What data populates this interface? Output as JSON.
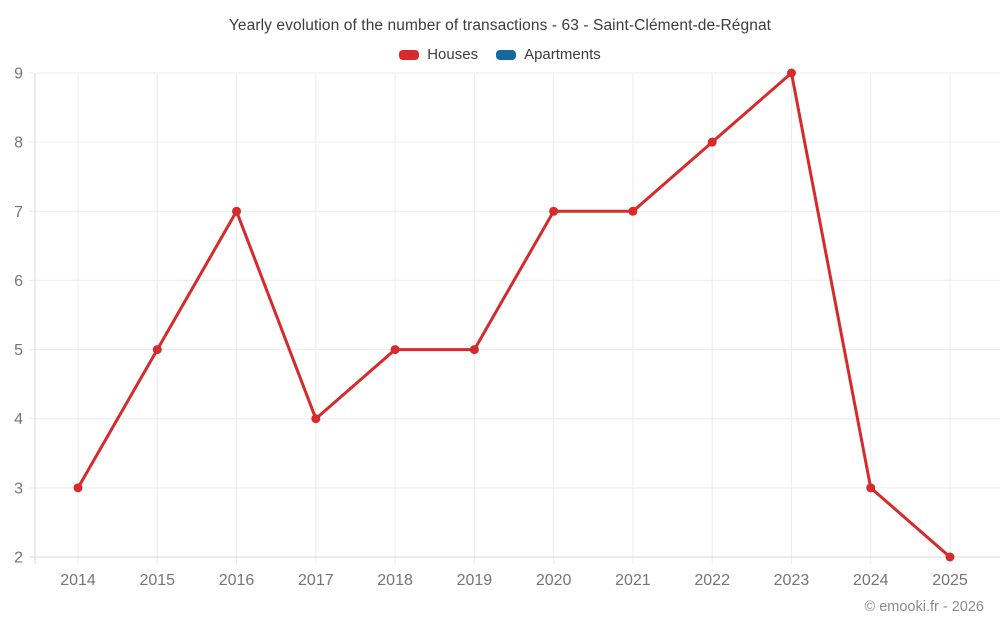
{
  "page": {
    "copyright": "© emooki.fr - 2026"
  },
  "theme": {
    "background": "#ffffff",
    "gridline_color": "#ececec",
    "axis_color": "#d8d8d8",
    "tick_label_color": "#757575",
    "title_color": "#3c3c3c",
    "copyright_color": "#8b8b8b"
  },
  "chart_data": {
    "type": "line",
    "title": "Yearly evolution of the number of transactions - 63 - Saint-Clément-de-Régnat",
    "categories": [
      "2014",
      "2015",
      "2016",
      "2017",
      "2018",
      "2019",
      "2020",
      "2021",
      "2022",
      "2023",
      "2024",
      "2025"
    ],
    "series": [
      {
        "name": "Houses",
        "color": "#d62a2b",
        "values": [
          3,
          5,
          7,
          4,
          5,
          5,
          7,
          7,
          8,
          9,
          3,
          2
        ]
      },
      {
        "name": "Apartments",
        "color": "#16699f",
        "values": []
      }
    ],
    "xlabel": "",
    "ylabel": "",
    "ylim": [
      2,
      9
    ],
    "yticks": [
      2,
      3,
      4,
      5,
      6,
      7,
      8,
      9
    ],
    "grid": true,
    "legend_position": "top",
    "marker": "circle"
  }
}
